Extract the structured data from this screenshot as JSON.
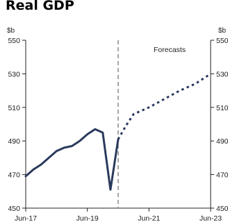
{
  "chart_data": {
    "type": "line",
    "title": "Real GDP",
    "unit_left": "$b",
    "unit_right": "$b",
    "ylim": [
      450,
      550
    ],
    "yticks": [
      450,
      470,
      490,
      510,
      530,
      550
    ],
    "x_tick_labels": [
      "Jun-17",
      "Jun-19",
      "Jun-21",
      "Jun-23"
    ],
    "x_tick_values": [
      2017.5,
      2019.5,
      2021.5,
      2023.5
    ],
    "xlim": [
      2017.5,
      2023.5
    ],
    "forecast_divider_x": 2020.5,
    "annotation": "Forecasts",
    "grid": false,
    "line_color": "#2a3a5c",
    "series": [
      {
        "style": "solid",
        "x": [
          2017.5,
          2017.75,
          2018.0,
          2018.25,
          2018.5,
          2018.75,
          2019.0,
          2019.25,
          2019.5,
          2019.75,
          2020.0,
          2020.25,
          2020.5
        ],
        "values": [
          469,
          473,
          476,
          480,
          484,
          486,
          487,
          490,
          494,
          497,
          495,
          461,
          491
        ]
      },
      {
        "style": "dashed",
        "x": [
          2020.5,
          2020.75,
          2021.0,
          2021.5,
          2022.0,
          2022.5,
          2023.0,
          2023.5
        ],
        "values": [
          491,
          499,
          506,
          510,
          515,
          520,
          524,
          530
        ]
      }
    ]
  }
}
